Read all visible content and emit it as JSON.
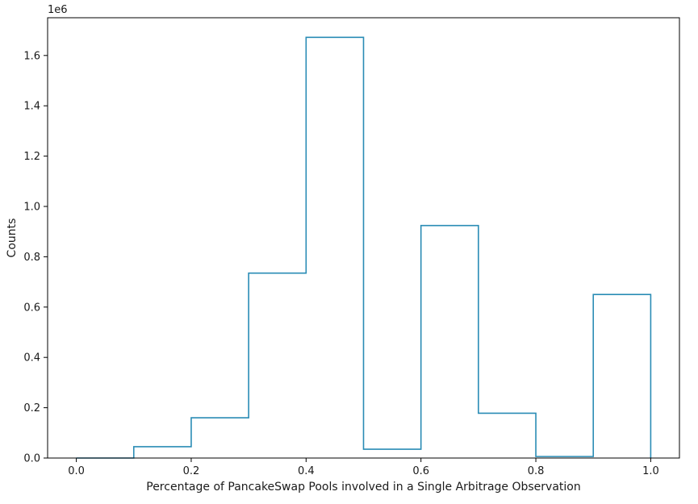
{
  "chart_data": {
    "type": "histogram",
    "style": "step",
    "line_color": "#2a8cb5",
    "bin_edges": [
      0.0,
      0.1,
      0.2,
      0.3,
      0.4,
      0.5,
      0.6,
      0.7,
      0.8,
      0.9,
      1.0
    ],
    "counts": [
      0,
      45000,
      160000,
      735000,
      1672000,
      35000,
      924000,
      178000,
      6000,
      650000
    ],
    "xlabel": "Percentage of PancakeSwap Pools involved in a Single Arbitrage Observation",
    "ylabel": "Counts",
    "y_offset_label": "1e6",
    "xlim": [
      -0.05,
      1.05
    ],
    "ylim": [
      0,
      1750000
    ],
    "x_ticks": [
      0.0,
      0.2,
      0.4,
      0.6,
      0.8,
      1.0
    ],
    "x_tick_labels": [
      "0.0",
      "0.2",
      "0.4",
      "0.6",
      "0.8",
      "1.0"
    ],
    "y_ticks": [
      0,
      200000,
      400000,
      600000,
      800000,
      1000000,
      1200000,
      1400000,
      1600000
    ],
    "y_tick_labels": [
      "0.0",
      "0.2",
      "0.4",
      "0.6",
      "0.8",
      "1.0",
      "1.2",
      "1.4",
      "1.6"
    ],
    "grid": false,
    "legend": "none"
  }
}
